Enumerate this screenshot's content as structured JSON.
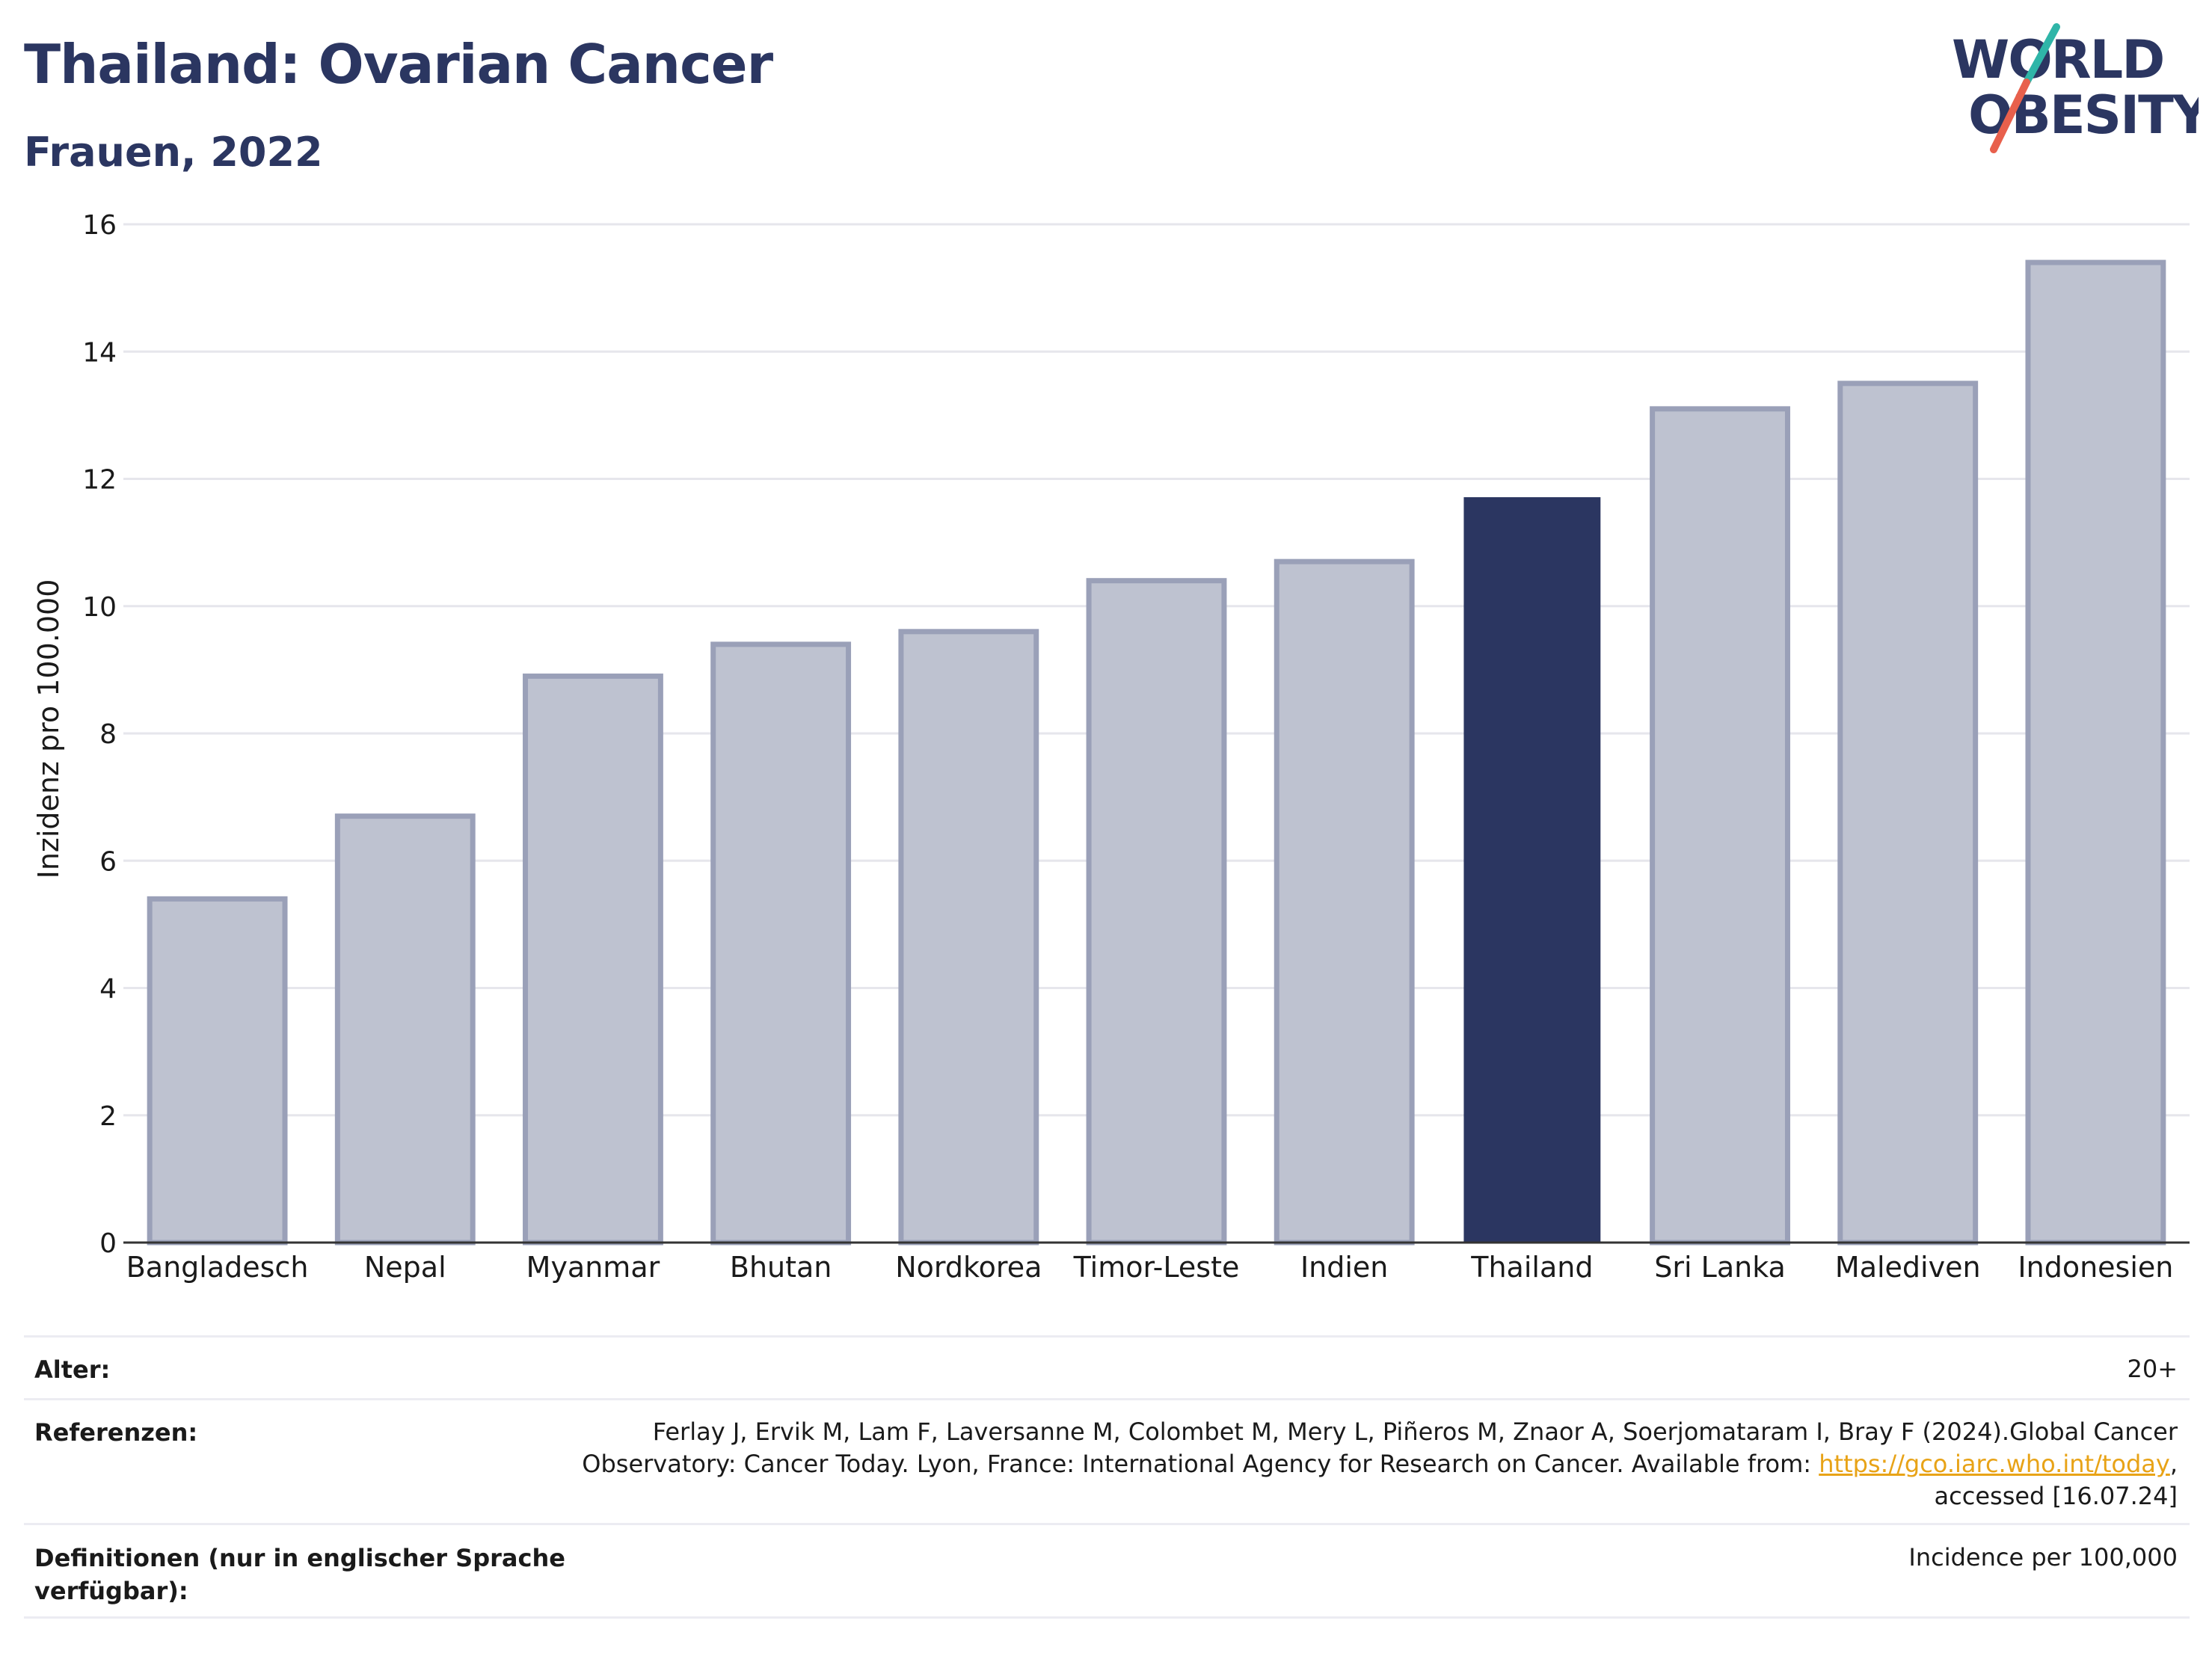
{
  "header": {
    "title": "Thailand: Ovarian Cancer",
    "subtitle": "Frauen, 2022"
  },
  "logo": {
    "line1": "WORLD",
    "line2": "OBESITY",
    "text_color": "#2b3661",
    "slash_colors": [
      "#2fb5a8",
      "#e8604c"
    ]
  },
  "chart_data": {
    "type": "bar",
    "title": "Thailand: Ovarian Cancer",
    "subtitle": "Frauen, 2022",
    "ylabel": "Inzidenz pro 100.000",
    "xlabel": "",
    "ylim": [
      0,
      16
    ],
    "yticks": [
      0,
      2,
      4,
      6,
      8,
      10,
      12,
      14,
      16
    ],
    "grid": true,
    "categories": [
      "Bangladesch",
      "Nepal",
      "Myanmar",
      "Bhutan",
      "Nordkorea",
      "Timor-Leste",
      "Indien",
      "Thailand",
      "Sri Lanka",
      "Malediven",
      "Indonesien"
    ],
    "values": [
      5.4,
      6.7,
      8.9,
      9.4,
      9.6,
      10.4,
      10.7,
      11.7,
      13.1,
      13.5,
      15.4
    ],
    "highlight": "Thailand",
    "colors": {
      "bar": "#bec2d0",
      "bar_border": "#9aa0b8",
      "highlight": "#2b3661",
      "grid": "#e6e6ec",
      "axis": "#333333"
    }
  },
  "meta": {
    "age_label": "Alter:",
    "age_value": "20+",
    "ref_label": "Referenzen:",
    "ref_line1": "Ferlay J, Ervik M, Lam F, Laversanne M, Colombet M, Mery L, Piñeros M, Znaor A, Soerjomataram I, Bray F (2024).Global Cancer",
    "ref_line2_pre": "Observatory: Cancer Today. Lyon, France: International Agency for Research on Cancer. Available from: ",
    "ref_link": "https://gco.iarc.who.int/today",
    "ref_line2_post": ",",
    "ref_line3": "accessed [16.07.24]",
    "def_label_1": "Definitionen (nur in englischer Sprache",
    "def_label_2": "verfügbar):",
    "def_value": "Incidence per 100,000"
  }
}
